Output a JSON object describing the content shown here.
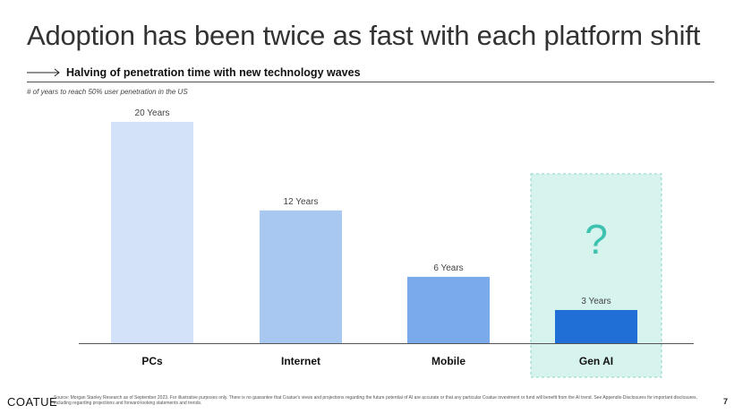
{
  "title": "Adoption has been twice as fast with each platform shift",
  "subtitle": "Halving of penetration time with new technology waves",
  "chart_note": "# of years to reach 50% user penetration in the US",
  "chart_data": {
    "type": "bar",
    "categories": [
      "PCs",
      "Internet",
      "Mobile",
      "Gen AI"
    ],
    "values": [
      20,
      12,
      6,
      3
    ],
    "data_labels": [
      "20 Years",
      "12 Years",
      "6 Years",
      "3 Years"
    ],
    "unit": "Years",
    "ylim": [
      0,
      20
    ],
    "grid": false,
    "highlight": {
      "category": "Gen AI",
      "annotation": "?"
    },
    "colors": [
      "#d3e2f8",
      "#a9c8f1",
      "#7aaaea",
      "#1f6fd6"
    ],
    "highlight_color": "#d6f3ee",
    "highlight_border": "#8fd3c8",
    "annotation_color": "#3cc2ae"
  },
  "footer": {
    "logo": "COATUE",
    "source": "Source: Morgan Stanley Research as of September 2023. For illustrative purposes only. There is no guarantee that Coatue's views and projections regarding the future potential of AI are accurate or that any particular Coatue investment or fund will benefit from the AI trend. See Appendix-Disclosures for important disclosures, including regarding projections and forward-looking statements and trends.",
    "page_number": "7"
  }
}
